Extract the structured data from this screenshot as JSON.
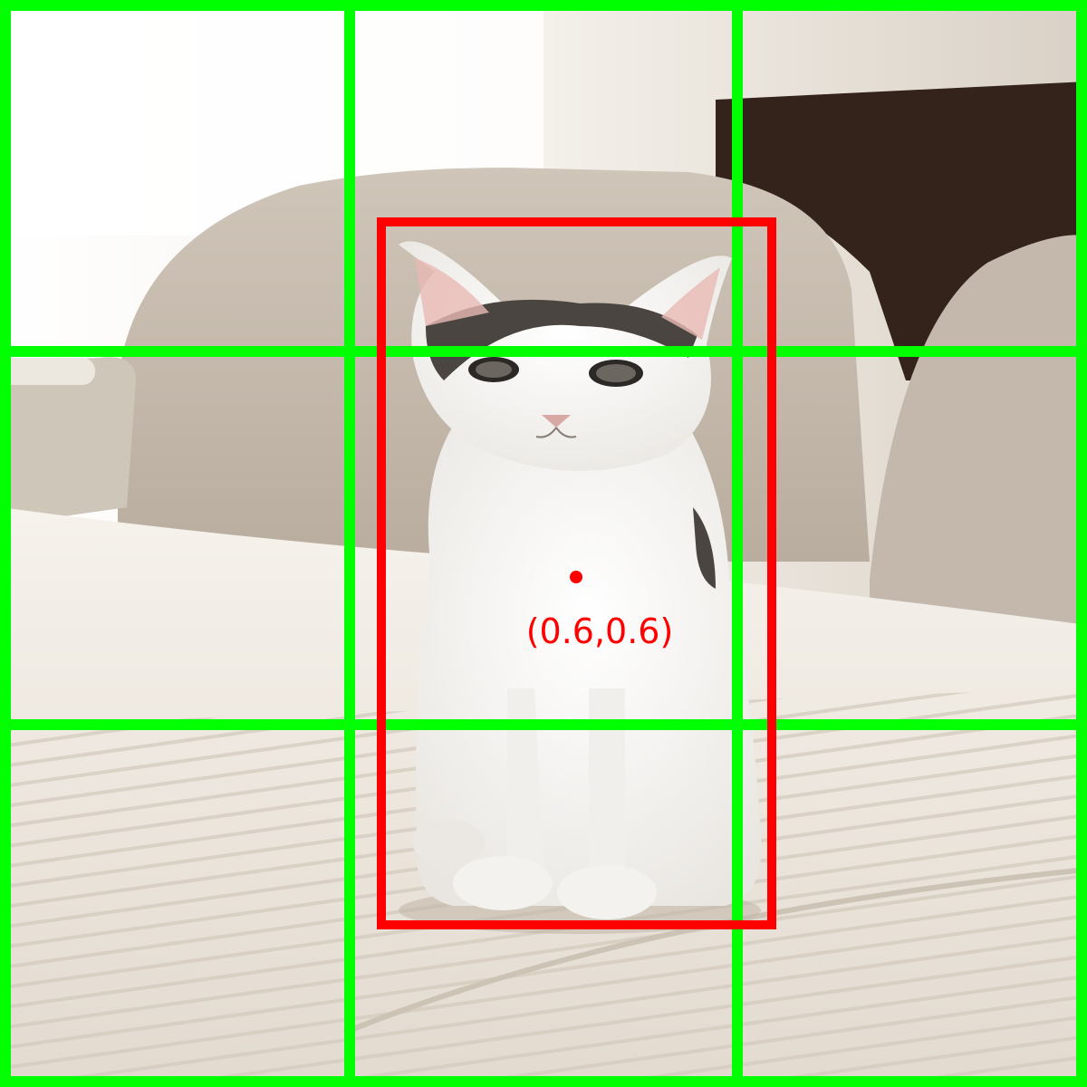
{
  "photo": {
    "subject": "cat-icon",
    "colors": {
      "wall": "#f6f3ee",
      "window_light": "#ffffff",
      "sofa": "#c9bfb3",
      "sofa_shadow": "#a69a8c",
      "dark_gap": "#33231a",
      "cushion": "#ece6dc",
      "stripe": "#cfc6b9",
      "cat_fur": "#f7f6f3",
      "cat_patch": "#4a4540",
      "cat_ear_inner": "#e8b9b4",
      "cat_nose": "#d8a8a4"
    }
  },
  "overlay": {
    "grid_color": "#00ff00",
    "box_color": "#ff0000",
    "marker_color": "#ff0000",
    "point_label": "(0.6,0.6)"
  }
}
